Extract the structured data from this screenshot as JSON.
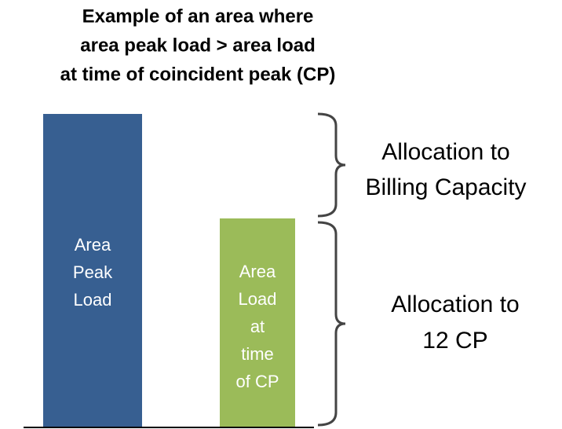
{
  "title": [
    "Example of an area where",
    "area peak load > area load",
    "at time of coincident peak (CP)"
  ],
  "bars": [
    {
      "label": [
        "Area",
        "Peak",
        "Load"
      ]
    },
    {
      "label": [
        "Area",
        "Load",
        "at",
        "time",
        "of CP"
      ]
    }
  ],
  "annotations": [
    {
      "label": [
        "Allocation to",
        "Billing Capacity"
      ]
    },
    {
      "label": [
        "Allocation to",
        "12 CP"
      ]
    }
  ]
}
